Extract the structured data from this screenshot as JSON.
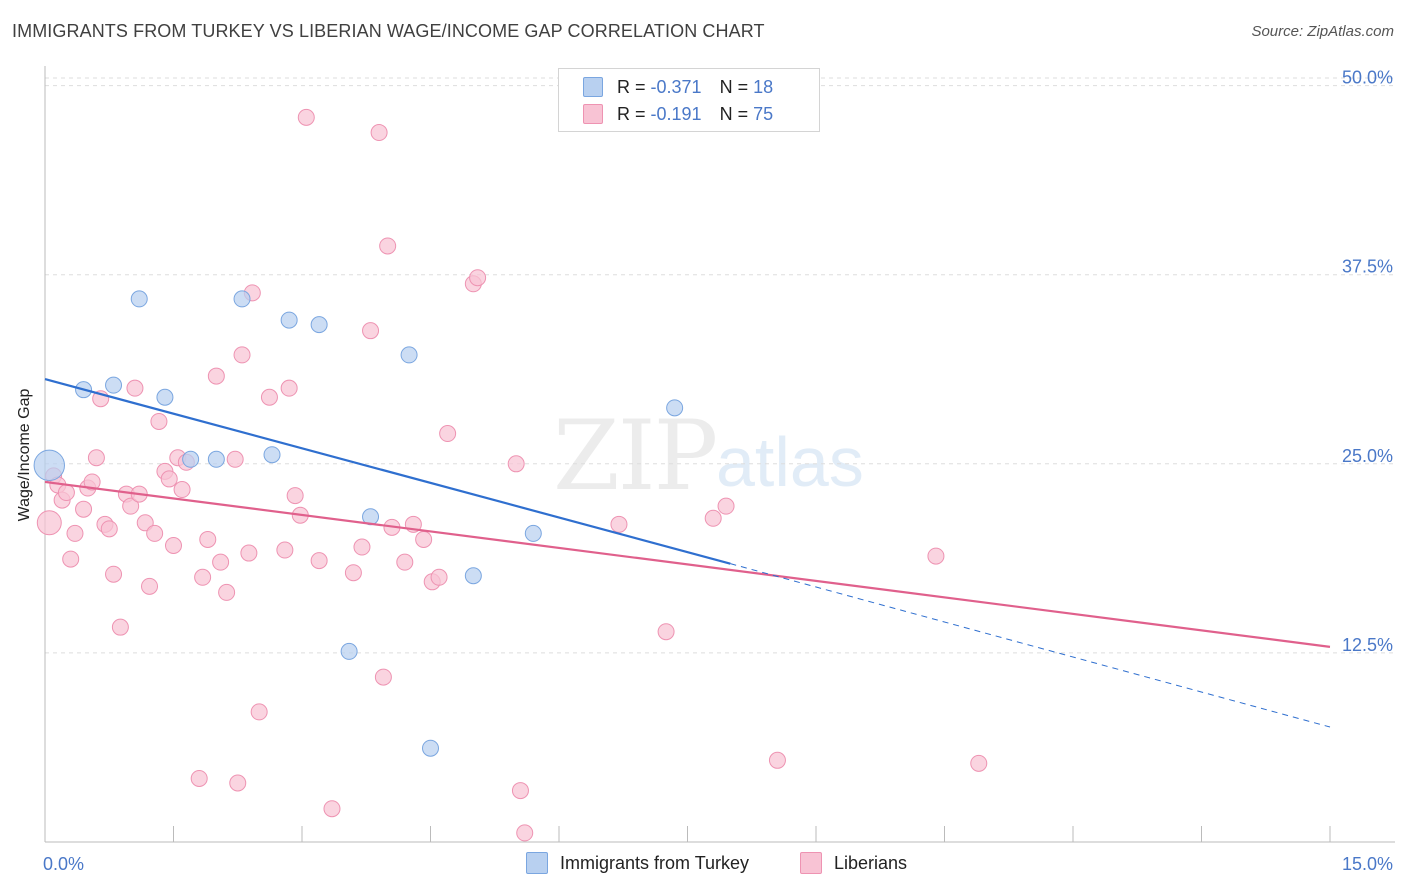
{
  "title": "IMMIGRANTS FROM TURKEY VS LIBERIAN WAGE/INCOME GAP CORRELATION CHART",
  "source": "Source: ZipAtlas.com",
  "watermark": {
    "zip": "ZIP",
    "atlas": "atlas"
  },
  "colors": {
    "turkey_fill": "#b8d0f0",
    "turkey_stroke": "#7aa6e0",
    "turkey_line": "#2f6fcf",
    "liberia_fill": "#f8c3d4",
    "liberia_stroke": "#ee93b2",
    "liberia_line": "#e0608c",
    "axis_label": "#4a78c8",
    "grid": "#dddddd"
  },
  "legend": {
    "rows": [
      {
        "r_label": "R =",
        "r_value": "-0.371",
        "n_label": "N =",
        "n_value": "18"
      },
      {
        "r_label": "R =",
        "r_value": "-0.191",
        "n_label": "N =",
        "n_value": "75"
      }
    ]
  },
  "bottom_legend": {
    "turkey": "Immigrants from Turkey",
    "liberia": "Liberians"
  },
  "chart_data": {
    "type": "scatter",
    "title": "IMMIGRANTS FROM TURKEY VS LIBERIAN WAGE/INCOME GAP CORRELATION CHART",
    "xlabel": "",
    "ylabel": "Wage/Income Gap",
    "xlim": [
      0,
      15
    ],
    "ylim": [
      0,
      50.9
    ],
    "x_tick_labels": [
      "0.0%",
      "15.0%"
    ],
    "y_ticks": [
      12.5,
      25.0,
      37.5,
      50.0
    ],
    "y_tick_labels": [
      "12.5%",
      "25.0%",
      "37.5%",
      "50.0%"
    ],
    "grid": true,
    "series": [
      {
        "name": "Immigrants from Turkey",
        "r": -0.371,
        "n": 18,
        "points": [
          [
            0.05,
            24.9,
            1.9
          ],
          [
            0.45,
            29.9,
            1
          ],
          [
            0.8,
            30.2,
            1
          ],
          [
            1.1,
            35.9,
            1
          ],
          [
            1.4,
            29.4,
            1
          ],
          [
            1.7,
            25.3,
            1
          ],
          [
            2.0,
            25.3,
            1
          ],
          [
            2.3,
            35.9,
            1
          ],
          [
            2.65,
            25.6,
            1
          ],
          [
            2.85,
            34.5,
            1
          ],
          [
            3.2,
            34.2,
            1
          ],
          [
            3.55,
            12.6,
            1
          ],
          [
            3.8,
            21.5,
            1
          ],
          [
            4.25,
            32.2,
            1
          ],
          [
            4.5,
            6.2,
            1
          ],
          [
            5.0,
            17.6,
            1
          ],
          [
            5.7,
            20.4,
            1
          ],
          [
            7.35,
            28.7,
            1
          ]
        ],
        "trend": {
          "x0": 0,
          "y0": 30.6,
          "x1": 8.0,
          "y1": 18.4,
          "dash_x1": 15.0,
          "dash_y1": 7.6
        }
      },
      {
        "name": "Liberians",
        "r": -0.191,
        "n": 75,
        "points": [
          [
            0.05,
            21.1,
            1.5
          ],
          [
            0.1,
            24.2,
            1
          ],
          [
            0.15,
            23.6,
            1
          ],
          [
            0.2,
            22.6,
            1
          ],
          [
            0.25,
            23.1,
            1
          ],
          [
            0.3,
            18.7,
            1
          ],
          [
            0.35,
            20.4,
            1
          ],
          [
            0.45,
            22.0,
            1
          ],
          [
            0.5,
            23.4,
            1
          ],
          [
            0.55,
            23.8,
            1
          ],
          [
            0.6,
            25.4,
            1
          ],
          [
            0.65,
            29.3,
            1
          ],
          [
            0.7,
            21.0,
            1
          ],
          [
            0.75,
            20.7,
            1
          ],
          [
            0.8,
            17.7,
            1
          ],
          [
            0.88,
            14.2,
            1
          ],
          [
            0.95,
            23.0,
            1
          ],
          [
            1.0,
            22.2,
            1
          ],
          [
            1.05,
            30.0,
            1
          ],
          [
            1.1,
            23.0,
            1
          ],
          [
            1.17,
            21.1,
            1
          ],
          [
            1.22,
            16.9,
            1
          ],
          [
            1.28,
            20.4,
            1
          ],
          [
            1.33,
            27.8,
            1
          ],
          [
            1.4,
            24.5,
            1
          ],
          [
            1.45,
            24.0,
            1
          ],
          [
            1.5,
            19.6,
            1
          ],
          [
            1.55,
            25.4,
            1
          ],
          [
            1.6,
            23.3,
            1
          ],
          [
            1.65,
            25.1,
            1
          ],
          [
            1.8,
            4.2,
            1
          ],
          [
            1.84,
            17.5,
            1
          ],
          [
            1.9,
            20.0,
            1
          ],
          [
            2.0,
            30.8,
            1
          ],
          [
            2.05,
            18.5,
            1
          ],
          [
            2.12,
            16.5,
            1
          ],
          [
            2.25,
            3.9,
            1
          ],
          [
            2.22,
            25.3,
            1
          ],
          [
            2.3,
            32.2,
            1
          ],
          [
            2.38,
            19.1,
            1
          ],
          [
            2.42,
            36.3,
            1
          ],
          [
            2.5,
            8.6,
            1
          ],
          [
            2.62,
            29.4,
            1
          ],
          [
            2.8,
            19.3,
            1
          ],
          [
            2.85,
            30.0,
            1
          ],
          [
            2.92,
            22.9,
            1
          ],
          [
            2.98,
            21.6,
            1
          ],
          [
            3.05,
            47.9,
            1
          ],
          [
            3.2,
            18.6,
            1
          ],
          [
            3.35,
            2.2,
            1
          ],
          [
            3.6,
            17.8,
            1
          ],
          [
            3.7,
            19.5,
            1
          ],
          [
            3.8,
            33.8,
            1
          ],
          [
            3.9,
            46.9,
            1
          ],
          [
            3.95,
            10.9,
            1
          ],
          [
            4.0,
            39.4,
            1
          ],
          [
            4.05,
            20.8,
            1
          ],
          [
            4.2,
            18.5,
            1
          ],
          [
            4.3,
            21.0,
            1
          ],
          [
            4.42,
            20.0,
            1
          ],
          [
            4.52,
            17.2,
            1
          ],
          [
            4.6,
            17.5,
            1
          ],
          [
            4.7,
            27.0,
            1
          ],
          [
            5.0,
            36.9,
            1
          ],
          [
            5.05,
            37.3,
            1
          ],
          [
            5.5,
            25.0,
            1
          ],
          [
            5.55,
            3.4,
            1
          ],
          [
            5.6,
            0.6,
            1
          ],
          [
            6.7,
            21.0,
            1
          ],
          [
            7.25,
            13.9,
            1
          ],
          [
            7.8,
            21.4,
            1
          ],
          [
            7.95,
            22.2,
            1
          ],
          [
            8.55,
            5.4,
            1
          ],
          [
            10.4,
            18.9,
            1
          ],
          [
            10.9,
            5.2,
            1
          ]
        ],
        "trend": {
          "x0": 0,
          "y0": 23.8,
          "x1": 15.0,
          "y1": 12.9
        }
      }
    ]
  }
}
